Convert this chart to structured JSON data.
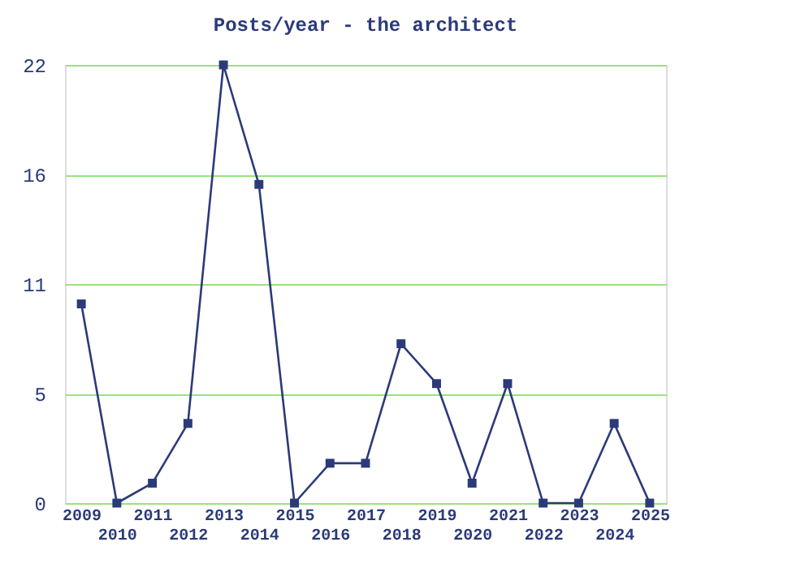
{
  "chart_data": {
    "type": "line",
    "title": "Posts/year - the architect",
    "categories": [
      "2009",
      "2010",
      "2011",
      "2012",
      "2013",
      "2014",
      "2015",
      "2016",
      "2017",
      "2018",
      "2019",
      "2020",
      "2021",
      "2022",
      "2023",
      "2024",
      "2025"
    ],
    "series": [
      {
        "color": "#2b3a78",
        "values": [
          10,
          0,
          1,
          4,
          22,
          16,
          0,
          2,
          2,
          8,
          6,
          1,
          6,
          0,
          0,
          4,
          0
        ]
      }
    ],
    "ylim": [
      0,
      22
    ],
    "yticks": [
      0,
      {
        "value": 5.5,
        "label": "5"
      },
      11,
      {
        "value": 16.5,
        "label": "16"
      },
      22
    ],
    "grid": "y",
    "marker": "square",
    "line_style": "solid"
  }
}
